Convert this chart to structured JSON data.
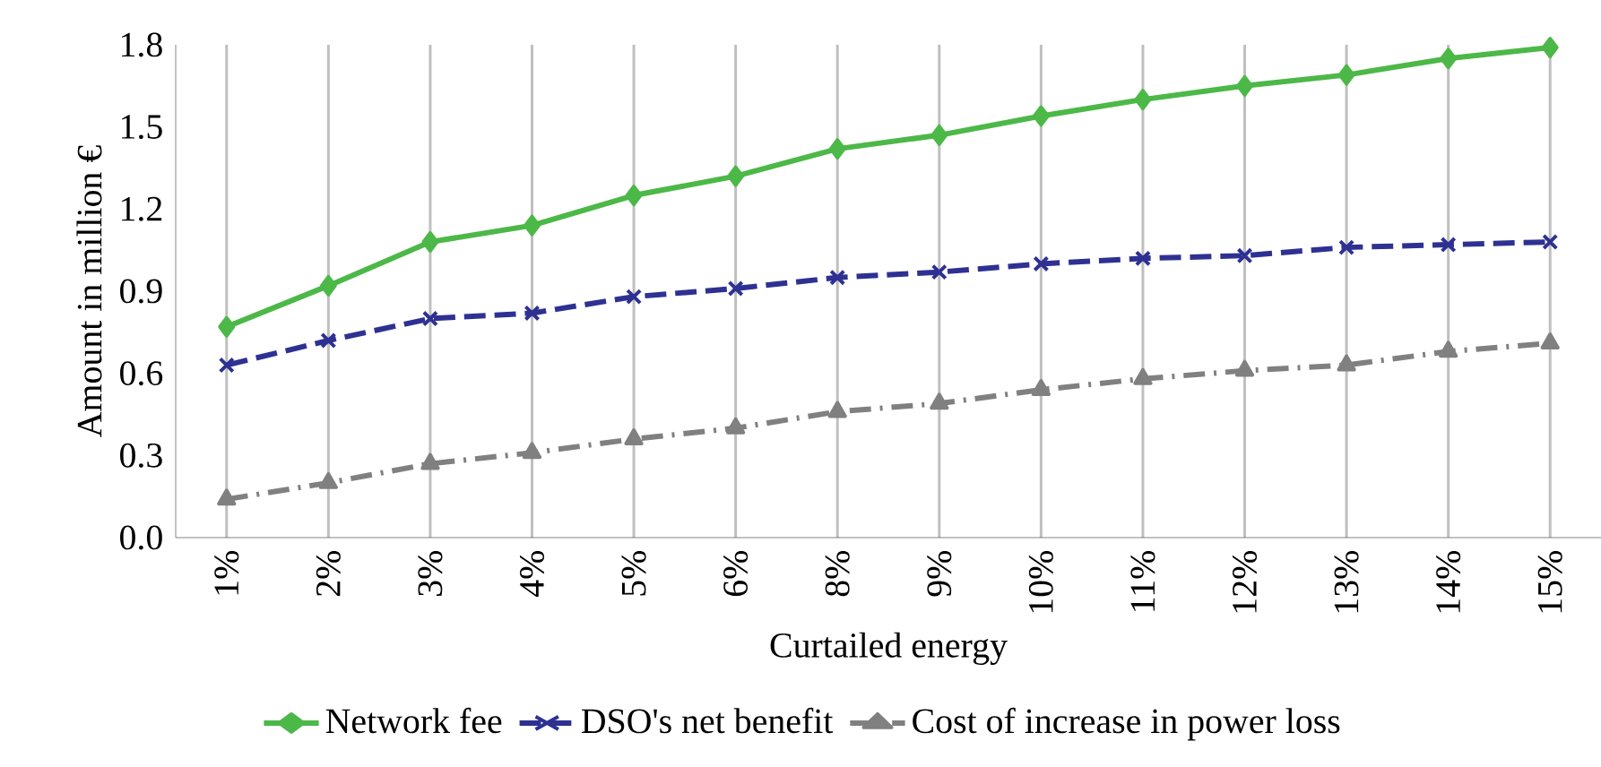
{
  "chart_data": {
    "type": "line",
    "xlabel": "Curtailed energy",
    "ylabel": "Amount in million €",
    "categories": [
      "1%",
      "2%",
      "3%",
      "4%",
      "5%",
      "6%",
      "8%",
      "9%",
      "10%",
      "11%",
      "12%",
      "13%",
      "14%",
      "15%"
    ],
    "series": [
      {
        "name": "Network fee",
        "color": "#4cb848",
        "marker": "diamond",
        "line_style": "solid",
        "values": [
          0.77,
          0.92,
          1.08,
          1.14,
          1.25,
          1.32,
          1.42,
          1.47,
          1.54,
          1.6,
          1.65,
          1.69,
          1.75,
          1.79
        ]
      },
      {
        "name": "DSO's net benefit",
        "color": "#2e3192",
        "marker": "cross",
        "line_style": "dashed",
        "values": [
          0.63,
          0.72,
          0.8,
          0.82,
          0.88,
          0.91,
          0.95,
          0.97,
          1.0,
          1.02,
          1.03,
          1.06,
          1.07,
          1.08
        ]
      },
      {
        "name": "Cost of increase in power loss",
        "color": "#808080",
        "marker": "triangle",
        "line_style": "dashdot",
        "values": [
          0.14,
          0.2,
          0.27,
          0.31,
          0.36,
          0.4,
          0.46,
          0.49,
          0.54,
          0.58,
          0.61,
          0.63,
          0.68,
          0.71
        ]
      }
    ],
    "ylim": [
      0,
      1.8
    ],
    "yticks": [
      {
        "value": 0,
        "label": "0.0"
      },
      {
        "value": 0.3,
        "label": "0.3"
      },
      {
        "value": 0.6,
        "label": "0.6"
      },
      {
        "value": 0.9,
        "label": "0.9"
      },
      {
        "value": 1.2,
        "label": "1.2"
      },
      {
        "value": 1.5,
        "label": "1.5"
      },
      {
        "value": 1.8,
        "label": "1.8"
      }
    ],
    "grid": "x",
    "legend": "bottom"
  }
}
